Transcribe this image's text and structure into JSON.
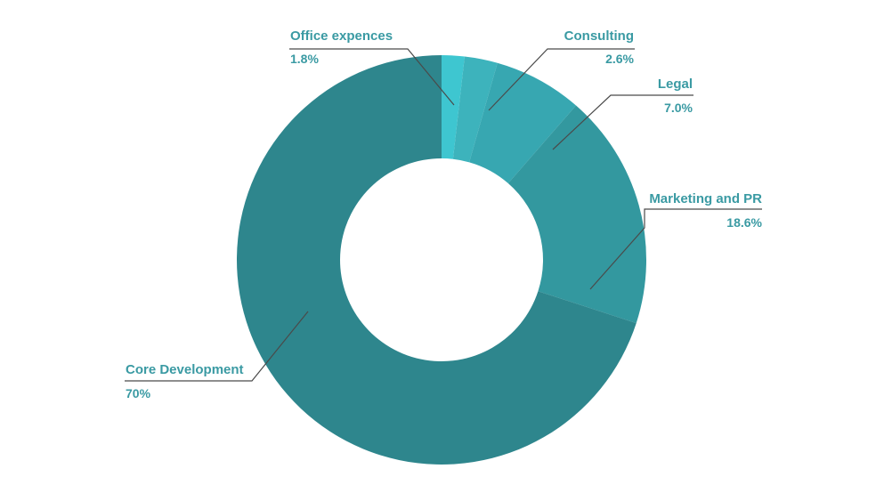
{
  "chart_data": {
    "type": "pie",
    "title": "",
    "donut": true,
    "start_angle": "top, clockwise",
    "slices": [
      {
        "label": "Office expences",
        "value": 1.8,
        "value_label": "1.8%",
        "color": "#3ec6d0"
      },
      {
        "label": "Consulting",
        "value": 2.6,
        "value_label": "2.6%",
        "color": "#3db3bc"
      },
      {
        "label": "Legal",
        "value": 7.0,
        "value_label": "7.0%",
        "color": "#37a7b1"
      },
      {
        "label": "Marketing and PR",
        "value": 18.6,
        "value_label": "18.6%",
        "color": "#33989f"
      },
      {
        "label": "Core Development",
        "value": 70,
        "value_label": "70%",
        "color": "#2e868d"
      }
    ],
    "label_color": "#3a9aa3",
    "leader_line_color": "#4a4a4a"
  }
}
